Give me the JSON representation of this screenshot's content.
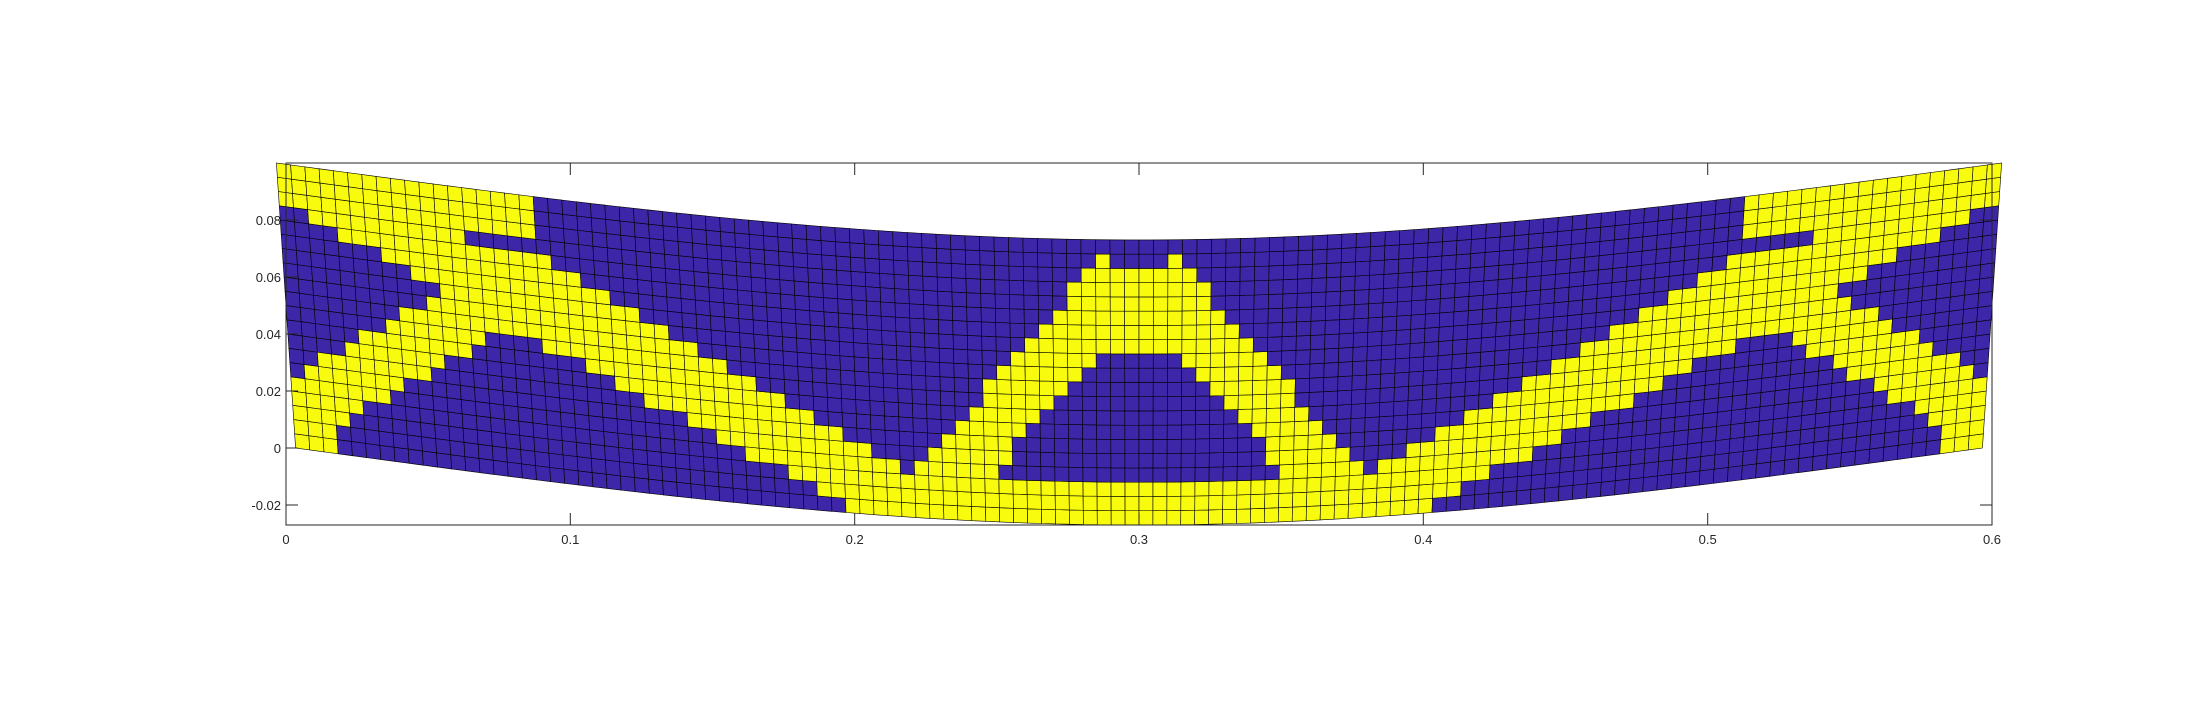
{
  "chart_data": {
    "type": "heatmap",
    "title": "",
    "xlabel": "",
    "ylabel": "",
    "xlim": [
      0,
      0.6
    ],
    "ylim": [
      -0.027,
      0.1
    ],
    "x_ticks": [
      "0",
      "0.1",
      "0.2",
      "0.3",
      "0.4",
      "0.5",
      "0.6"
    ],
    "y_ticks": [
      "-0.02",
      "0",
      "0.02",
      "0.04",
      "0.06",
      "0.08"
    ],
    "grid": false,
    "mesh": {
      "cols": 120,
      "rows": 20,
      "beam_length": 0.6,
      "beam_height": 0.1,
      "max_deflection": 0.027
    },
    "colormap": {
      "void": "#3e26a8",
      "solid": "#f9fb0e",
      "intermediate_low": "#1fb4d6",
      "intermediate_mid": "#2fbfa0",
      "intermediate_high": "#f0a040",
      "edge": "#000000"
    }
  }
}
